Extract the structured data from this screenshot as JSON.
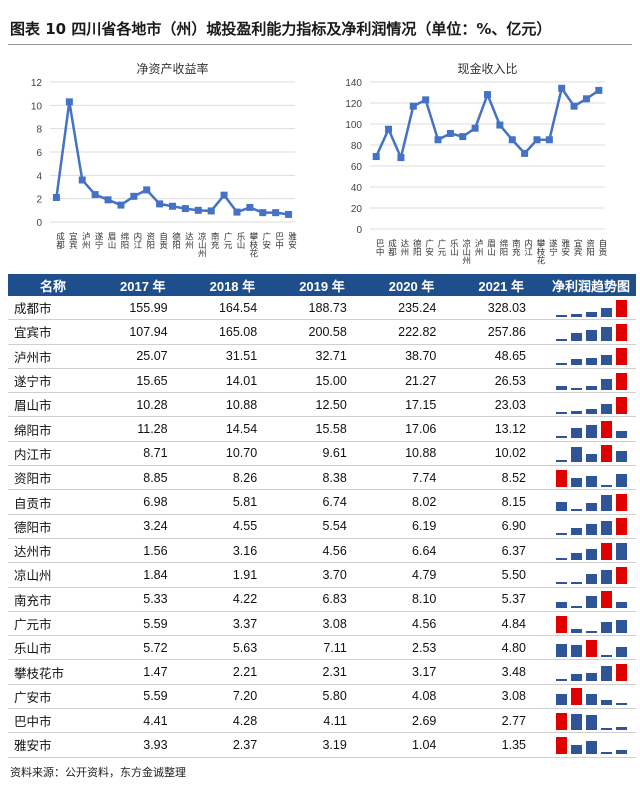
{
  "title": "图表 10   四川省各地市（州）城投盈利能力指标及净利润情况（单位：%、亿元）",
  "colors": {
    "line": "#4472c4",
    "header": "#1f4e8c",
    "bar": "#2f5597",
    "bar_max": "#e00000"
  },
  "chart_data": [
    {
      "type": "line",
      "title": "净资产收益率",
      "ylim": [
        0,
        12
      ],
      "yticks": [
        0,
        2,
        4,
        6,
        8,
        10,
        12
      ],
      "grid": true,
      "categories": [
        "成都",
        "宜宾",
        "泸州",
        "遂宁",
        "眉山",
        "绵阳",
        "内江",
        "资阳",
        "自贡",
        "德阳",
        "达州",
        "凉山州",
        "南充",
        "广元",
        "乐山",
        "攀枝花",
        "广安",
        "巴中",
        "雅安"
      ],
      "values": [
        2.1,
        10.3,
        3.6,
        2.35,
        1.9,
        1.45,
        2.2,
        2.75,
        1.55,
        1.35,
        1.15,
        1.0,
        0.95,
        2.3,
        0.85,
        1.25,
        0.8,
        0.8,
        0.65
      ]
    },
    {
      "type": "line",
      "title": "现金收入比",
      "ylim": [
        0,
        140
      ],
      "yticks": [
        0,
        20,
        40,
        60,
        80,
        100,
        120,
        140
      ],
      "grid": true,
      "categories": [
        "巴中",
        "成都",
        "达州",
        "德阳",
        "广安",
        "广元",
        "乐山",
        "凉山州",
        "泸州",
        "眉山",
        "绵阳",
        "南充",
        "内江",
        "攀枝花",
        "遂宁",
        "雅安",
        "宜宾",
        "资阳",
        "自贡"
      ],
      "values": [
        69,
        95,
        68,
        117,
        123,
        85,
        91,
        88,
        96,
        128,
        99,
        85,
        72,
        85,
        85,
        134,
        117,
        124,
        132
      ]
    }
  ],
  "table": {
    "headers": [
      "名称",
      "2017 年",
      "2018 年",
      "2019 年",
      "2020 年",
      "2021 年",
      "净利润趋势图"
    ],
    "rows": [
      [
        "成都市",
        "155.99",
        "164.54",
        "188.73",
        "235.24",
        "328.03"
      ],
      [
        "宜宾市",
        "107.94",
        "165.08",
        "200.58",
        "222.82",
        "257.86"
      ],
      [
        "泸州市",
        "25.07",
        "31.51",
        "32.71",
        "38.70",
        "48.65"
      ],
      [
        "遂宁市",
        "15.65",
        "14.01",
        "15.00",
        "21.27",
        "26.53"
      ],
      [
        "眉山市",
        "10.28",
        "10.88",
        "12.50",
        "17.15",
        "23.03"
      ],
      [
        "绵阳市",
        "11.28",
        "14.54",
        "15.58",
        "17.06",
        "13.12"
      ],
      [
        "内江市",
        "8.71",
        "10.70",
        "9.61",
        "10.88",
        "10.02"
      ],
      [
        "资阳市",
        "8.85",
        "8.26",
        "8.38",
        "7.74",
        "8.52"
      ],
      [
        "自贡市",
        "6.98",
        "5.81",
        "6.74",
        "8.02",
        "8.15"
      ],
      [
        "德阳市",
        "3.24",
        "4.55",
        "5.54",
        "6.19",
        "6.90"
      ],
      [
        "达州市",
        "1.56",
        "3.16",
        "4.56",
        "6.64",
        "6.37"
      ],
      [
        "凉山州",
        "1.84",
        "1.91",
        "3.70",
        "4.79",
        "5.50"
      ],
      [
        "南充市",
        "5.33",
        "4.22",
        "6.83",
        "8.10",
        "5.37"
      ],
      [
        "广元市",
        "5.59",
        "3.37",
        "3.08",
        "4.56",
        "4.84"
      ],
      [
        "乐山市",
        "5.72",
        "5.63",
        "7.11",
        "2.53",
        "4.80"
      ],
      [
        "攀枝花市",
        "1.47",
        "2.21",
        "2.31",
        "3.17",
        "3.48"
      ],
      [
        "广安市",
        "5.59",
        "7.20",
        "5.80",
        "4.08",
        "3.08"
      ],
      [
        "巴中市",
        "4.41",
        "4.28",
        "4.11",
        "2.69",
        "2.77"
      ],
      [
        "雅安市",
        "3.93",
        "2.37",
        "3.19",
        "1.04",
        "1.35"
      ]
    ]
  },
  "source": "资料来源：公开资料，东方金诚整理"
}
